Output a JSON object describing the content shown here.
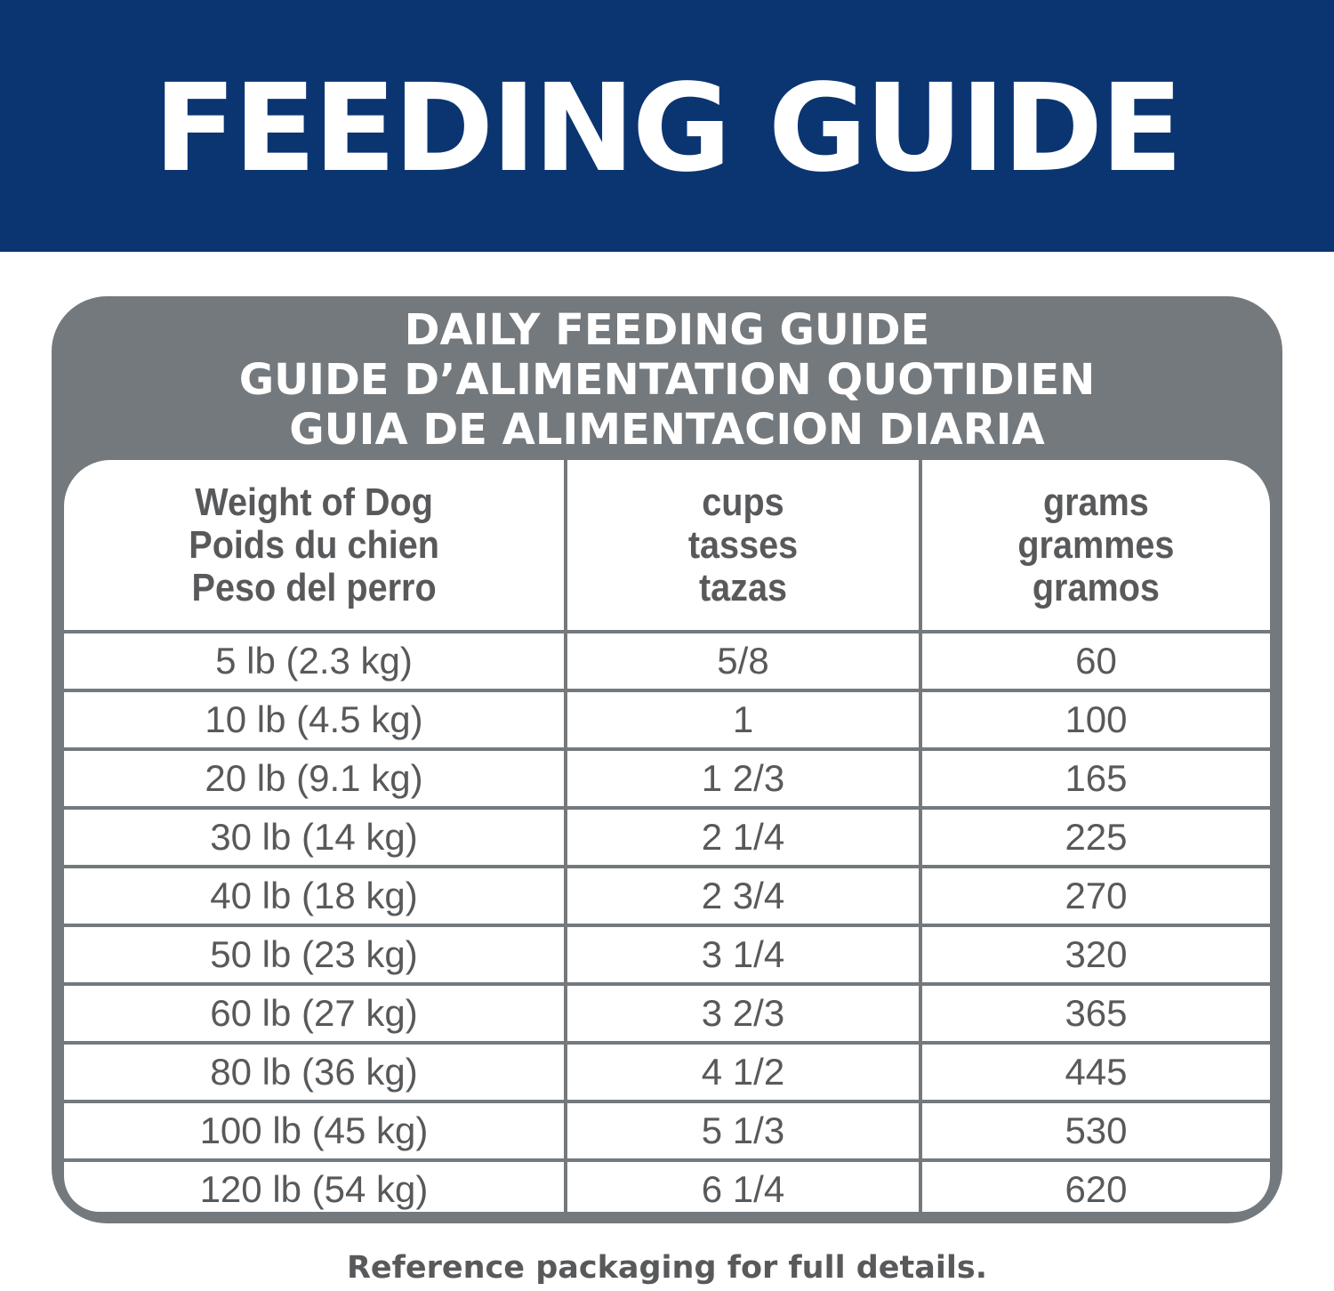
{
  "banner": {
    "title": "FEEDING GUIDE"
  },
  "guide": {
    "titles": [
      "DAILY FEEDING GUIDE",
      "GUIDE D’ALIMENTATION QUOTIDIEN",
      "GUIA DE ALIMENTACION DIARIA"
    ],
    "headers": [
      [
        "Weight of Dog",
        "Poids du chien",
        "Peso del perro"
      ],
      [
        "cups",
        "tasses",
        "tazas"
      ],
      [
        "grams",
        "grammes",
        "gramos"
      ]
    ],
    "rows": [
      [
        "5 lb (2.3 kg)",
        "5/8",
        "60"
      ],
      [
        "10 lb (4.5 kg)",
        "1",
        "100"
      ],
      [
        "20 lb (9.1 kg)",
        "1 2/3",
        "165"
      ],
      [
        "30 lb (14 kg)",
        "2 1/4",
        "225"
      ],
      [
        "40 lb (18 kg)",
        "2 3/4",
        "270"
      ],
      [
        "50 lb (23 kg)",
        "3 1/4",
        "320"
      ],
      [
        "60 lb (27 kg)",
        "3 2/3",
        "365"
      ],
      [
        "80 lb (36 kg)",
        "4 1/2",
        "445"
      ],
      [
        "100 lb (45 kg)",
        "5 1/3",
        "530"
      ],
      [
        "120 lb (54 kg)",
        "6 1/4",
        "620"
      ]
    ]
  },
  "footer": {
    "note": "Reference packaging for full details."
  },
  "colors": {
    "banner": "#0b3571",
    "frame": "#74797d",
    "text": "#58595b"
  }
}
